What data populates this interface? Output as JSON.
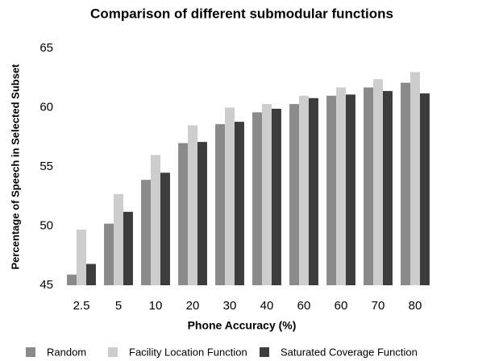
{
  "chart_data": {
    "type": "bar",
    "title": "Comparison of different submodular functions",
    "x_label": "Phone Accuracy (%)",
    "y_label": "Percentage of Speech in Selected Subset",
    "categories": [
      "2.5",
      "5",
      "10",
      "20",
      "30",
      "40",
      "60",
      "60",
      "70",
      "80"
    ],
    "series": [
      {
        "name": "Random",
        "color": "#8a8a8a",
        "values": [
          45.9,
          50.2,
          53.9,
          57.0,
          58.6,
          59.6,
          60.3,
          61.0,
          61.7,
          62.1
        ]
      },
      {
        "name": "Facility Location Function",
        "color": "#cdcdcd",
        "values": [
          49.7,
          52.7,
          56.0,
          58.5,
          60.0,
          60.3,
          61.0,
          61.7,
          62.4,
          63.0
        ]
      },
      {
        "name": "Saturated Coverage Function",
        "color": "#3c3c3c",
        "values": [
          46.8,
          51.2,
          54.5,
          57.1,
          58.8,
          59.9,
          60.8,
          61.1,
          61.4,
          61.2
        ]
      }
    ],
    "ylim": [
      45,
      65
    ],
    "yticks": [
      45,
      50,
      55,
      60,
      65
    ],
    "grid": false,
    "legend": "bottom"
  }
}
